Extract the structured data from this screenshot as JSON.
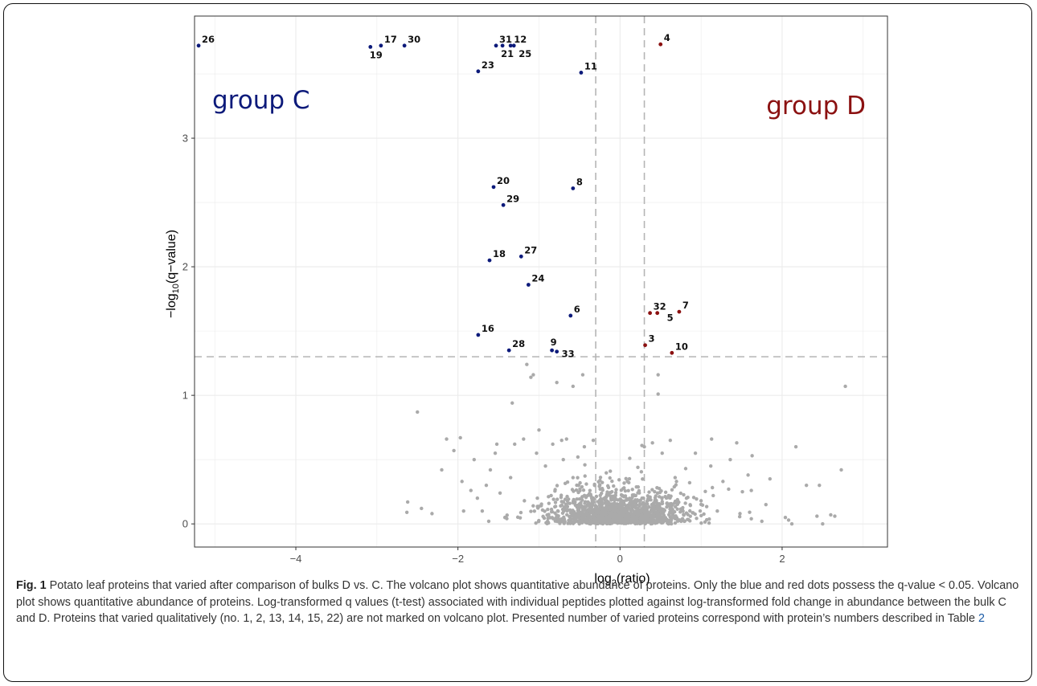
{
  "chart_data": {
    "type": "scatter",
    "xlabel_main": "log",
    "xlabel_sub": "2",
    "xlabel_tail": "(ratio)",
    "ylabel_prefix": "−log",
    "ylabel_sub": "10",
    "ylabel_tail": "(q−value)",
    "xlim": [
      -5.25,
      3.3
    ],
    "ylim": [
      -0.18,
      3.95
    ],
    "x_ticks": [
      -4,
      -2,
      0,
      2
    ],
    "x_tick_labels": [
      "−4",
      "−2",
      "0",
      "2"
    ],
    "y_ticks": [
      0,
      1,
      2,
      3
    ],
    "y_tick_labels": [
      "0",
      "1",
      "2",
      "3"
    ],
    "grid": true,
    "thresholds": {
      "x": [
        -0.3,
        0.3
      ],
      "y": 1.3
    },
    "colors": {
      "group_c": "#0c1a7a",
      "group_d": "#8b1111",
      "ns": "#aaaaaa",
      "threshold": "#b5b5b5"
    },
    "group_labels": [
      {
        "text": "group C",
        "color": "#0c1a7a"
      },
      {
        "text": "group D",
        "color": "#8b1111"
      }
    ],
    "series": [
      {
        "name": "group C",
        "points": [
          {
            "x": -5.2,
            "y": 3.72,
            "label": "26"
          },
          {
            "x": -3.08,
            "y": 3.71,
            "label": "19"
          },
          {
            "x": -2.95,
            "y": 3.72,
            "label": "17"
          },
          {
            "x": -2.66,
            "y": 3.72,
            "label": "30"
          },
          {
            "x": -1.53,
            "y": 3.72,
            "label": "31"
          },
          {
            "x": -1.45,
            "y": 3.72,
            "label": "21"
          },
          {
            "x": -1.35,
            "y": 3.72,
            "label": "12"
          },
          {
            "x": -1.31,
            "y": 3.72,
            "label": "25"
          },
          {
            "x": -1.75,
            "y": 3.52,
            "label": "23"
          },
          {
            "x": -0.48,
            "y": 3.51,
            "label": "11"
          },
          {
            "x": -1.56,
            "y": 2.62,
            "label": "20"
          },
          {
            "x": -0.58,
            "y": 2.61,
            "label": "8"
          },
          {
            "x": -1.44,
            "y": 2.48,
            "label": "29"
          },
          {
            "x": -1.61,
            "y": 2.05,
            "label": "18"
          },
          {
            "x": -1.22,
            "y": 2.08,
            "label": "27"
          },
          {
            "x": -1.13,
            "y": 1.86,
            "label": "24"
          },
          {
            "x": -0.61,
            "y": 1.62,
            "label": "6"
          },
          {
            "x": -1.75,
            "y": 1.47,
            "label": "16"
          },
          {
            "x": -1.37,
            "y": 1.35,
            "label": "28"
          },
          {
            "x": -0.84,
            "y": 1.35,
            "label": "9"
          },
          {
            "x": -0.78,
            "y": 1.34,
            "label": "33"
          }
        ]
      },
      {
        "name": "group D",
        "points": [
          {
            "x": 0.5,
            "y": 3.73,
            "label": "4"
          },
          {
            "x": 0.37,
            "y": 1.64,
            "label": "32"
          },
          {
            "x": 0.46,
            "y": 1.64,
            "label": "5"
          },
          {
            "x": 0.73,
            "y": 1.65,
            "label": "7"
          },
          {
            "x": 0.31,
            "y": 1.39,
            "label": "3"
          },
          {
            "x": 0.64,
            "y": 1.33,
            "label": "10"
          }
        ]
      }
    ],
    "ns_points": [
      [
        -1.15,
        1.24
      ],
      [
        -1.07,
        1.16
      ],
      [
        -1.1,
        1.14
      ],
      [
        -1.33,
        0.94
      ],
      [
        -0.78,
        1.1
      ],
      [
        -0.46,
        1.16
      ],
      [
        -0.58,
        1.07
      ],
      [
        0.47,
        1.16
      ],
      [
        0.47,
        1.01
      ],
      [
        2.78,
        1.07
      ],
      [
        -2.5,
        0.87
      ],
      [
        -2.14,
        0.66
      ],
      [
        -1.97,
        0.67
      ],
      [
        -1.52,
        0.62
      ],
      [
        -1.3,
        0.62
      ],
      [
        -1.19,
        0.66
      ],
      [
        -1.0,
        0.73
      ],
      [
        -0.83,
        0.62
      ],
      [
        -0.72,
        0.65
      ],
      [
        -0.66,
        0.66
      ],
      [
        -0.44,
        0.6
      ],
      [
        -0.33,
        0.65
      ],
      [
        0.27,
        0.61
      ],
      [
        0.3,
        0.6
      ],
      [
        0.4,
        0.63
      ],
      [
        0.62,
        0.65
      ],
      [
        1.13,
        0.66
      ],
      [
        1.44,
        0.63
      ],
      [
        2.17,
        0.6
      ],
      [
        -2.05,
        0.57
      ],
      [
        -1.8,
        0.5
      ],
      [
        -1.54,
        0.55
      ],
      [
        -1.03,
        0.55
      ],
      [
        -0.7,
        0.5
      ],
      [
        -0.52,
        0.52
      ],
      [
        0.12,
        0.51
      ],
      [
        0.52,
        0.55
      ],
      [
        0.93,
        0.55
      ],
      [
        1.36,
        0.5
      ],
      [
        1.63,
        0.53
      ],
      [
        -2.2,
        0.42
      ],
      [
        -1.6,
        0.42
      ],
      [
        -0.92,
        0.45
      ],
      [
        -0.12,
        0.41
      ],
      [
        0.22,
        0.44
      ],
      [
        0.81,
        0.43
      ],
      [
        1.12,
        0.45
      ],
      [
        1.58,
        0.38
      ],
      [
        2.73,
        0.42
      ],
      [
        -1.95,
        0.33
      ],
      [
        -1.35,
        0.36
      ],
      [
        -0.58,
        0.36
      ],
      [
        0.09,
        0.33
      ],
      [
        0.68,
        0.36
      ],
      [
        1.27,
        0.33
      ],
      [
        1.85,
        0.35
      ],
      [
        2.3,
        0.3
      ],
      [
        2.46,
        0.3
      ],
      [
        -2.62,
        0.17
      ],
      [
        -2.45,
        0.12
      ],
      [
        -2.32,
        0.08
      ],
      [
        -2.63,
        0.09
      ],
      [
        -1.84,
        0.26
      ],
      [
        -1.76,
        0.2
      ],
      [
        -1.7,
        0.1
      ],
      [
        -1.93,
        0.1
      ],
      [
        -1.65,
        0.3
      ],
      [
        -1.48,
        0.24
      ],
      [
        1.34,
        0.27
      ],
      [
        1.51,
        0.25
      ],
      [
        1.62,
        0.26
      ],
      [
        1.8,
        0.15
      ],
      [
        2.04,
        0.05
      ],
      [
        2.08,
        0.03
      ],
      [
        2.43,
        0.06
      ],
      [
        2.6,
        0.07
      ],
      [
        2.65,
        0.06
      ],
      [
        2.5,
        0.0
      ],
      [
        2.12,
        0.0
      ],
      [
        1.48,
        0.08
      ],
      [
        -0.1,
        0.25
      ],
      [
        0.05,
        0.28
      ],
      [
        0.18,
        0.22
      ],
      [
        0.35,
        0.2
      ],
      [
        -0.25,
        0.3
      ],
      [
        0.6,
        0.22
      ],
      [
        0.82,
        0.2
      ],
      [
        -0.4,
        0.22
      ],
      [
        -0.65,
        0.18
      ],
      [
        -0.85,
        0.22
      ],
      [
        -1.02,
        0.2
      ],
      [
        -1.18,
        0.18
      ],
      [
        1.0,
        0.18
      ],
      [
        1.15,
        0.22
      ],
      [
        -1.62,
        0.02
      ],
      [
        -1.42,
        0.05
      ],
      [
        1.62,
        0.04
      ],
      [
        1.75,
        0.02
      ]
    ]
  },
  "caption": {
    "fig_label": "Fig. 1",
    "text": " Potato leaf proteins that varied after comparison of bulks D vs. C. The volcano plot shows quantitative abundance of proteins. Only the blue and red dots possess the q-value < 0.05. Volcano plot shows quantitative abundance of proteins. Log-transformed q values (t-test) associated with individual peptides plotted against log-transformed fold change in abundance between the bulk C and D. Proteins that varied qualitatively (no. 1, 2, 13, 14, 15, 22) are not marked on volcano plot. Presented number of varied proteins correspond with protein’s numbers described in Table ",
    "table_ref": "2"
  }
}
